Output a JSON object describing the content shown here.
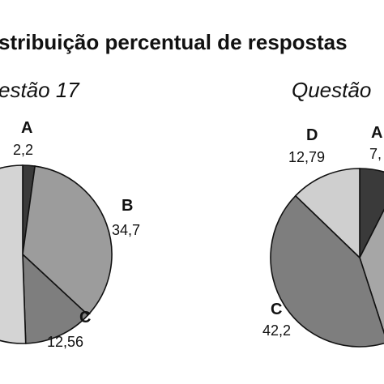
{
  "title": "stribuição percentual de respostas",
  "chart_data": [
    {
      "type": "pie",
      "subtitle": "estão 17",
      "slices": [
        {
          "category": "A",
          "value_label": "2,2",
          "value": 2.2,
          "color": "#3a3a3a"
        },
        {
          "category": "B",
          "value_label": "34,7",
          "value": 34.7,
          "color": "#9c9c9c"
        },
        {
          "category": "C",
          "value_label": "12,56",
          "value": 12.56,
          "color": "#7e7e7e"
        }
      ]
    },
    {
      "type": "pie",
      "subtitle": "Questão",
      "slices": [
        {
          "category": "A",
          "value_label": "7,",
          "color": "#3a3a3a"
        },
        {
          "category": "C",
          "value_label": "42,2",
          "value": 42.2,
          "color": "#7e7e7e"
        },
        {
          "category": "D",
          "value_label": "12,79",
          "value": 12.79,
          "color": "#cfcfcf"
        }
      ]
    }
  ]
}
